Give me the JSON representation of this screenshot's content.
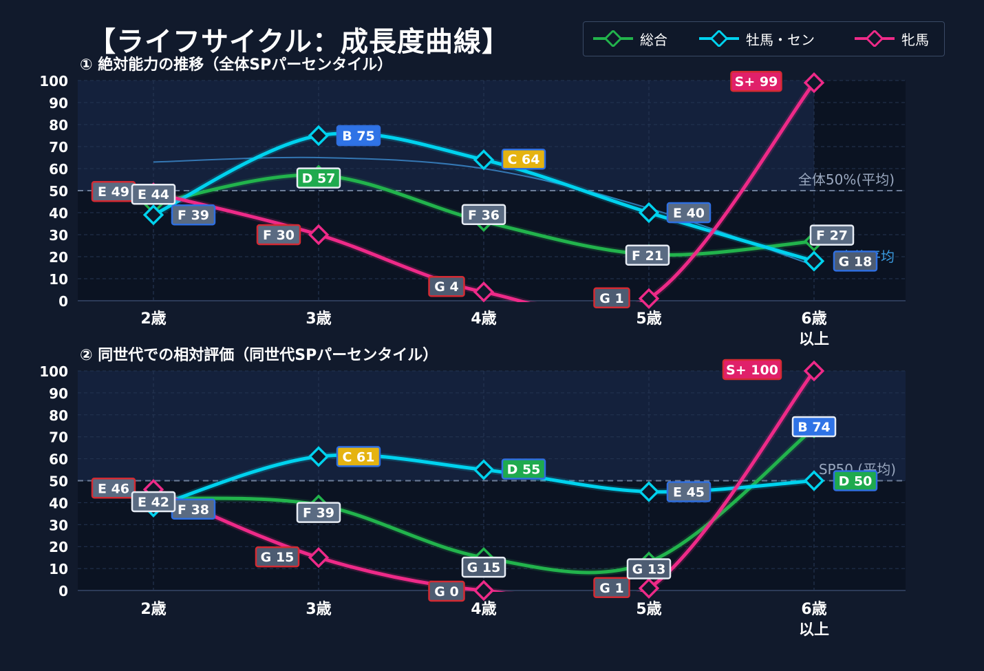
{
  "title": "【ライフサイクル：成長度曲線】",
  "legend": [
    {
      "name": "総合",
      "color": "#22b34c"
    },
    {
      "name": "牡馬・セン",
      "color": "#00d2ee"
    },
    {
      "name": "牝馬",
      "color": "#ee2a88"
    }
  ],
  "colors": {
    "background": "#111a2c",
    "plot_dark": "#0b1322",
    "plot_band": "#15233f",
    "green": "#22b34c",
    "cyan": "#00d2ee",
    "pink": "#ee2a88",
    "grade_S": "#e0206a",
    "grade_B": "#2f73e6",
    "grade_C": "#e5b310",
    "grade_D": "#1faa4e",
    "grade_E": "#5a6b82",
    "grade_F": "#5a6b82",
    "grade_G": "#4d5c72"
  },
  "chart_data": [
    {
      "type": "line",
      "title": "① 絶対能力の推移（全体SPパーセンタイル）",
      "categories": [
        "2歳",
        "3歳",
        "4歳",
        "5歳",
        "6歳\n以上"
      ],
      "ylim": [
        0,
        100
      ],
      "yticks": [
        0,
        10,
        20,
        30,
        40,
        50,
        60,
        70,
        80,
        90,
        100
      ],
      "grid": true,
      "reference_line": {
        "value": 50,
        "label": "全体50%(平均)"
      },
      "overall_average_line": {
        "values": [
          63,
          65,
          60,
          42,
          16
        ],
        "label": "全体平均"
      },
      "series": [
        {
          "name": "総合",
          "key": "green",
          "values": [
            44,
            57,
            36,
            21,
            27
          ],
          "labels": [
            "E 44",
            "D 57",
            "F 36",
            "F 21",
            "F 27"
          ]
        },
        {
          "name": "牡馬・セン",
          "key": "cyan",
          "values": [
            39,
            75,
            64,
            40,
            18
          ],
          "labels": [
            "F 39",
            "B 75",
            "C 64",
            "E 40",
            "G 18"
          ]
        },
        {
          "name": "牝馬",
          "key": "pink",
          "values": [
            49,
            30,
            4,
            1,
            99
          ],
          "labels": [
            "E 49",
            "F 30",
            "G 4",
            "G 1",
            "S+ 99"
          ]
        }
      ]
    },
    {
      "type": "line",
      "title": "② 同世代での相対評価（同世代SPパーセンタイル）",
      "categories": [
        "2歳",
        "3歳",
        "4歳",
        "5歳",
        "6歳\n以上"
      ],
      "ylim": [
        0,
        100
      ],
      "yticks": [
        0,
        10,
        20,
        30,
        40,
        50,
        60,
        70,
        80,
        90,
        100
      ],
      "grid": true,
      "reference_line": {
        "value": 50,
        "label": "SP50 (平均)"
      },
      "series": [
        {
          "name": "総合",
          "key": "green",
          "values": [
            42,
            39,
            15,
            13,
            74
          ],
          "labels": [
            "E 42",
            "F 39",
            "G 15",
            "G 13",
            "B 74"
          ]
        },
        {
          "name": "牡馬・セン",
          "key": "cyan",
          "values": [
            38,
            61,
            55,
            45,
            50
          ],
          "labels": [
            "F 38",
            "C 61",
            "D 55",
            "E 45",
            "D 50"
          ]
        },
        {
          "name": "牝馬",
          "key": "pink",
          "values": [
            46,
            15,
            0,
            1,
            100
          ],
          "labels": [
            "E 46",
            "G 15",
            "G 0",
            "G 1",
            "S+ 100"
          ]
        }
      ]
    }
  ]
}
